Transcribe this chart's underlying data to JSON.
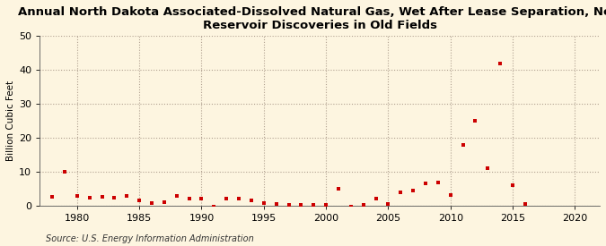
{
  "title": "Annual North Dakota Associated-Dissolved Natural Gas, Wet After Lease Separation, New\nReservoir Discoveries in Old Fields",
  "ylabel": "Billion Cubic Feet",
  "source": "Source: U.S. Energy Information Administration",
  "background_color": "#fdf5e0",
  "plot_bg_color": "#fdf5e0",
  "data": {
    "1978": 2.5,
    "1979": 10.0,
    "1980": 2.8,
    "1981": 2.2,
    "1982": 2.5,
    "1983": 2.2,
    "1984": 2.8,
    "1985": 1.5,
    "1986": 0.8,
    "1987": 1.0,
    "1988": 2.8,
    "1989": 2.0,
    "1990": 2.0,
    "1991": -0.2,
    "1992": 2.0,
    "1993": 2.0,
    "1994": 1.5,
    "1995": 0.8,
    "1996": 0.5,
    "1997": 0.3,
    "1998": 0.3,
    "1999": 0.3,
    "2000": 0.2,
    "2001": 5.0,
    "2002": -0.2,
    "2003": 0.3,
    "2004": 2.0,
    "2005": 0.5,
    "2006": 4.0,
    "2007": 4.5,
    "2008": 6.5,
    "2009": 6.8,
    "2010": 3.0,
    "2011": 18.0,
    "2012": 25.0,
    "2013": 11.0,
    "2014": 42.0,
    "2015": 6.0,
    "2016": 0.5
  },
  "xlim": [
    1977,
    2022
  ],
  "ylim": [
    0,
    50
  ],
  "yticks": [
    0,
    10,
    20,
    30,
    40,
    50
  ],
  "xticks": [
    1980,
    1985,
    1990,
    1995,
    2000,
    2005,
    2010,
    2015,
    2020
  ],
  "marker_color": "#cc0000",
  "marker_size": 12,
  "grid_color": "#b0a090",
  "title_fontsize": 9.5,
  "label_fontsize": 7.5,
  "tick_fontsize": 8,
  "source_fontsize": 7
}
